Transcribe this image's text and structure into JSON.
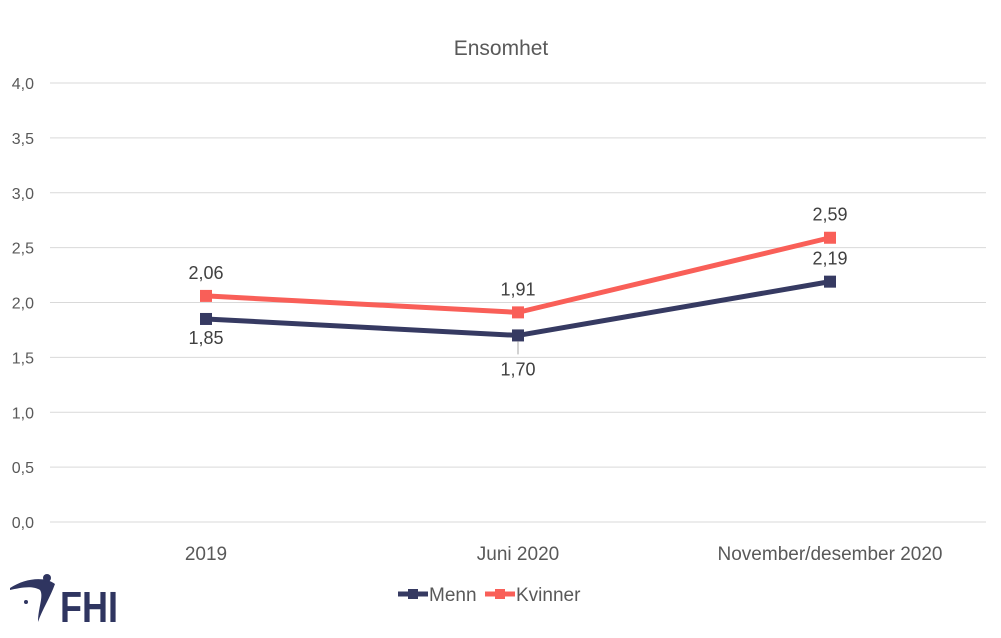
{
  "chart_data": {
    "type": "line",
    "title": "Ensomhet",
    "xlabel": "",
    "ylabel": "",
    "categories": [
      "2019",
      "Juni 2020",
      "November/desember 2020"
    ],
    "series": [
      {
        "name": "Menn",
        "color": "#363a62",
        "values": [
          1.85,
          1.7,
          2.19
        ],
        "labels": [
          "1,85",
          "1,70",
          "2,19"
        ],
        "label_position": "below"
      },
      {
        "name": "Kvinner",
        "color": "#f95f58",
        "values": [
          2.06,
          1.91,
          2.59
        ],
        "labels": [
          "2,06",
          "1,91",
          "2,59"
        ],
        "label_position": "above"
      }
    ],
    "ylim": [
      0,
      4.0
    ],
    "yticks": [
      0,
      0.5,
      1.0,
      1.5,
      2.0,
      2.5,
      3.0,
      3.5,
      4.0
    ],
    "ytick_labels": [
      "0,0",
      "0,5",
      "1,0",
      "1,5",
      "2,0",
      "2,5",
      "3,0",
      "3,5",
      "4,0"
    ],
    "grid": true,
    "legend": "bottom-center"
  },
  "logo": {
    "text": "FHI",
    "color": "#2f3560"
  }
}
